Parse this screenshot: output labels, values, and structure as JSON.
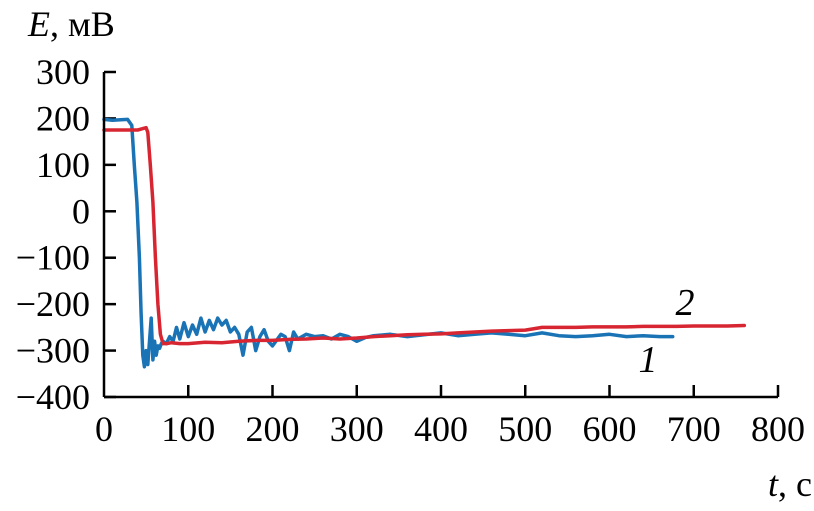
{
  "chart_data": {
    "type": "line",
    "ylabel_var": "E",
    "ylabel_unit": ", мВ",
    "xlabel_var": "t",
    "xlabel_unit": ", с",
    "xlim": [
      0,
      800
    ],
    "ylim": [
      -400,
      300
    ],
    "xticks": [
      0,
      100,
      200,
      300,
      400,
      500,
      600,
      700,
      800
    ],
    "yticks": [
      300,
      200,
      100,
      0,
      -100,
      -200,
      -300,
      -400
    ],
    "ytick_labels": [
      "300",
      "200",
      "100",
      "0",
      "−100",
      "−200",
      "−300",
      "−400"
    ],
    "grid": false,
    "series": [
      {
        "label": "1",
        "color": "#1a73b5",
        "x": [
          0,
          10,
          20,
          28,
          33,
          36,
          39,
          42,
          44,
          46,
          48,
          50,
          52,
          54,
          56,
          58,
          60,
          62,
          64,
          66,
          68,
          70,
          74,
          78,
          82,
          86,
          90,
          95,
          100,
          105,
          110,
          115,
          120,
          125,
          130,
          135,
          140,
          145,
          150,
          155,
          160,
          165,
          170,
          175,
          180,
          185,
          190,
          195,
          200,
          210,
          215,
          220,
          225,
          230,
          240,
          250,
          260,
          270,
          280,
          290,
          300,
          310,
          320,
          340,
          360,
          380,
          400,
          420,
          440,
          460,
          480,
          500,
          520,
          540,
          560,
          580,
          600,
          620,
          640,
          660,
          675
        ],
        "y": [
          198,
          196,
          197,
          198,
          185,
          100,
          20,
          -100,
          -220,
          -310,
          -335,
          -300,
          -330,
          -280,
          -230,
          -320,
          -280,
          -310,
          -290,
          -295,
          -285,
          -280,
          -285,
          -270,
          -280,
          -250,
          -275,
          -240,
          -270,
          -245,
          -265,
          -230,
          -260,
          -235,
          -255,
          -230,
          -245,
          -235,
          -260,
          -250,
          -265,
          -310,
          -260,
          -250,
          -300,
          -270,
          -255,
          -280,
          -290,
          -265,
          -270,
          -300,
          -260,
          -275,
          -265,
          -270,
          -268,
          -275,
          -265,
          -270,
          -280,
          -272,
          -268,
          -265,
          -270,
          -266,
          -262,
          -268,
          -265,
          -262,
          -265,
          -268,
          -262,
          -268,
          -270,
          -268,
          -265,
          -270,
          -268,
          -270,
          -270
        ]
      },
      {
        "label": "2",
        "color": "#d72631",
        "x": [
          0,
          20,
          40,
          46,
          50,
          52,
          55,
          58,
          61,
          64,
          67,
          70,
          75,
          80,
          90,
          100,
          120,
          140,
          160,
          180,
          200,
          220,
          240,
          260,
          280,
          300,
          320,
          340,
          360,
          380,
          400,
          420,
          440,
          460,
          480,
          500,
          520,
          540,
          560,
          580,
          600,
          620,
          640,
          660,
          680,
          700,
          720,
          740,
          760
        ],
        "y": [
          175,
          175,
          175,
          178,
          180,
          170,
          100,
          20,
          -100,
          -200,
          -265,
          -285,
          -285,
          -283,
          -285,
          -285,
          -282,
          -283,
          -280,
          -278,
          -278,
          -276,
          -275,
          -273,
          -275,
          -273,
          -270,
          -268,
          -266,
          -265,
          -264,
          -262,
          -260,
          -258,
          -257,
          -256,
          -250,
          -250,
          -250,
          -249,
          -249,
          -249,
          -248,
          -248,
          -248,
          -247,
          -247,
          -247,
          -246
        ]
      }
    ]
  }
}
